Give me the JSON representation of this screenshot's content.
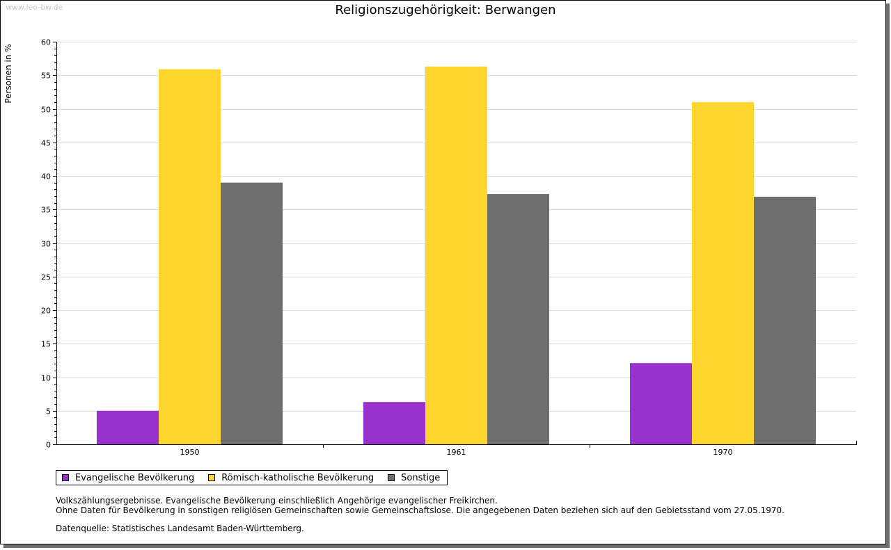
{
  "watermark": "www.leo-bw.de",
  "colors": {
    "evangelisch": "#9932cc",
    "katholisch": "#fcd62e",
    "sonstige": "#6e6e6e",
    "grid": "#dcdcdc"
  },
  "chart_data": {
    "type": "bar",
    "title": "Religionszugehörigkeit: Berwangen",
    "xlabel": "",
    "ylabel": "Personen in %",
    "ylim": [
      0,
      60
    ],
    "yticks": [
      "0",
      "5",
      "10",
      "15",
      "20",
      "25",
      "30",
      "35",
      "40",
      "45",
      "50",
      "55",
      "60"
    ],
    "grid": true,
    "legend_position": "bottom-left",
    "categories": [
      "1950",
      "1961",
      "1970"
    ],
    "series": [
      {
        "name": "Evangelische Bevölkerung",
        "color_key": "evangelisch",
        "values": [
          5.0,
          6.3,
          12.1
        ]
      },
      {
        "name": "Römisch-katholische Bevölkerung",
        "color_key": "katholisch",
        "values": [
          55.9,
          56.3,
          51.0
        ]
      },
      {
        "name": "Sonstige",
        "color_key": "sonstige",
        "values": [
          39.0,
          37.3,
          36.9
        ]
      }
    ]
  },
  "notes": {
    "line1": "Volkszählungsergebnisse. Evangelische Bevölkerung einschließlich Angehörige evangelischer Freikirchen.",
    "line2": "Ohne Daten für Bevölkerung in sonstigen religiösen Gemeinschaften sowie Gemeinschaftslose. Die angegebenen Daten beziehen sich auf den Gebietsstand vom 27.05.1970.",
    "source": "Datenquelle: Statistisches Landesamt Baden-Württemberg."
  }
}
